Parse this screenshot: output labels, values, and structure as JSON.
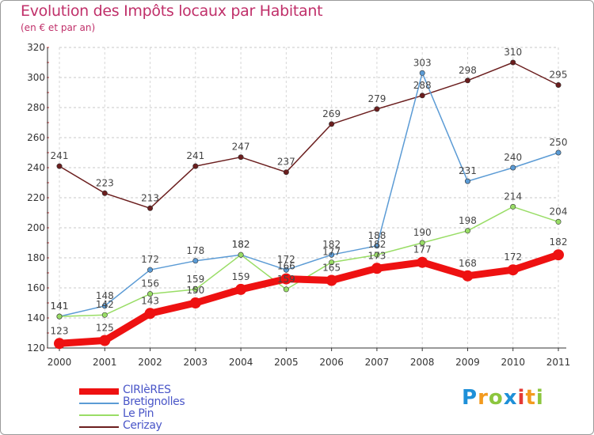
{
  "header": {
    "title": "Evolution des Impôts locaux par Habitant",
    "subtitle": "(en € et par an)"
  },
  "logo": {
    "text": "Proxiti",
    "letters": [
      {
        "ch": "P",
        "color": "#1e90d8"
      },
      {
        "ch": "r",
        "color": "#f39a1e"
      },
      {
        "ch": "o",
        "color": "#8cc63e"
      },
      {
        "ch": "x",
        "color": "#1e90d8"
      },
      {
        "ch": "i",
        "color": "#e53935"
      },
      {
        "ch": "t",
        "color": "#f39a1e"
      },
      {
        "ch": "i",
        "color": "#8cc63e"
      }
    ]
  },
  "chart_data": {
    "type": "line",
    "title": "Evolution des Impôts locaux par Habitant",
    "subtitle": "(en € et par an)",
    "xlabel": "",
    "ylabel": "",
    "categories": [
      "2000",
      "2001",
      "2002",
      "2003",
      "2004",
      "2005",
      "2006",
      "2007",
      "2008",
      "2009",
      "2010",
      "2011"
    ],
    "ylim": [
      120,
      320
    ],
    "yticks": [
      120,
      140,
      160,
      180,
      200,
      220,
      240,
      260,
      280,
      300,
      320
    ],
    "grid": "horizontal-dashed",
    "legend_position": "bottom-left",
    "series": [
      {
        "name": "Cerizay",
        "color": "#6b1e1e",
        "values": [
          241,
          223,
          213,
          241,
          247,
          237,
          269,
          279,
          288,
          298,
          310,
          295
        ],
        "labels": [
          "241",
          "223",
          "213",
          "241",
          "247",
          "237",
          "269",
          "279",
          "288",
          "298",
          "310",
          "295"
        ]
      },
      {
        "name": "Bretignolles",
        "color": "#5b9bd5",
        "values": [
          141,
          148,
          172,
          178,
          182,
          172,
          182,
          188,
          303,
          231,
          240,
          250
        ],
        "labels": [
          "141",
          "148",
          "172",
          "178",
          "182",
          "172",
          "182",
          "188",
          "303",
          "231",
          "240",
          "250"
        ]
      },
      {
        "name": "Le Pin",
        "color": "#99dd66",
        "values": [
          141,
          142,
          156,
          159,
          182,
          159,
          177,
          182,
          190,
          198,
          214,
          204
        ],
        "labels": [
          "141",
          "142",
          "156",
          "159",
          "182",
          "159",
          "177",
          "182",
          "190",
          "198",
          "214",
          "204"
        ]
      },
      {
        "name": "CIRIèRES",
        "color": "#ee1111",
        "values": [
          123,
          125,
          143,
          150,
          159,
          166,
          165,
          173,
          177,
          168,
          172,
          182
        ],
        "labels": [
          "123",
          "125",
          "143",
          "150",
          "159",
          "166",
          "165",
          "173",
          "177",
          "168",
          "172",
          "182"
        ]
      }
    ],
    "legend": [
      "CIRIèRES",
      "Bretignolles",
      "Le Pin",
      "Cerizay"
    ]
  }
}
